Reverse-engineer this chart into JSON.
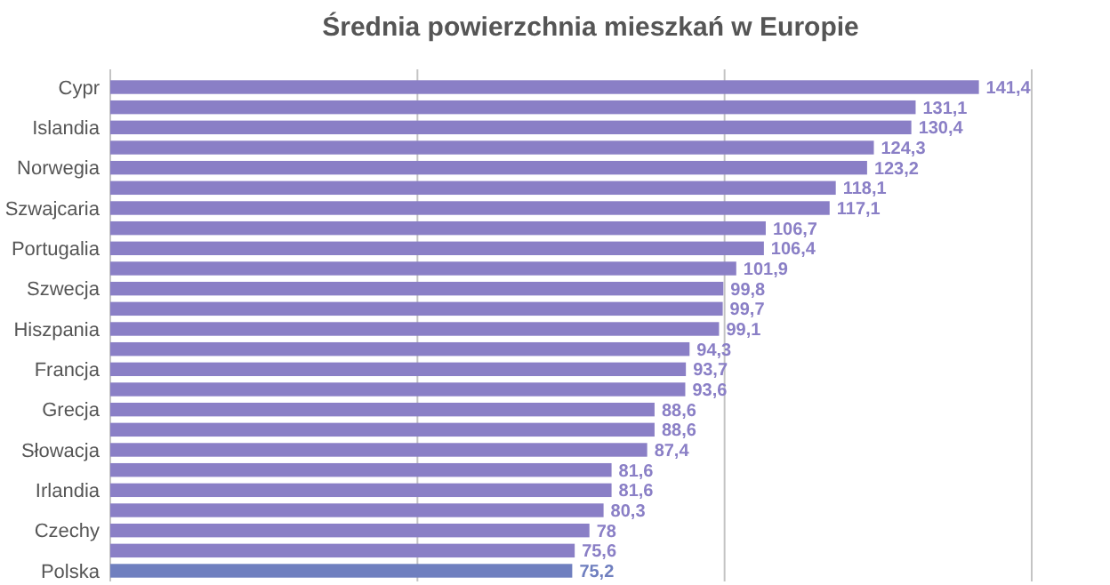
{
  "chart_data": {
    "type": "bar",
    "orientation": "horizontal",
    "title": "Średnia powierzchnia mieszkań w Europie",
    "categories": [
      "Cypr",
      null,
      "Islandia",
      null,
      "Norwegia",
      null,
      "Szwajcaria",
      null,
      "Portugalia",
      null,
      "Szwecja",
      null,
      "Hiszpania",
      null,
      "Francja",
      null,
      "Grecja",
      null,
      "Słowacja",
      null,
      "Irlandia",
      null,
      "Czechy",
      null,
      "Polska"
    ],
    "values": [
      141.4,
      131.1,
      130.4,
      124.3,
      123.2,
      118.1,
      117.1,
      106.7,
      106.4,
      101.9,
      99.8,
      99.7,
      99.1,
      94.3,
      93.7,
      93.6,
      88.6,
      88.6,
      87.4,
      81.6,
      81.6,
      80.3,
      78,
      75.6,
      75.2
    ],
    "value_labels": [
      "141,4",
      "131,1",
      "130,4",
      "124,3",
      "123,2",
      "118,1",
      "117,1",
      "106,7",
      "106,4",
      "101,9",
      "99,8",
      "99,7",
      "99,1",
      "94,3",
      "93,7",
      "93,6",
      "88,6",
      "88,6",
      "87,4",
      "81,6",
      "81,6",
      "80,3",
      "78",
      "75,6",
      "75,2"
    ],
    "colors": [
      "#8a7fc6",
      "#8a7fc6",
      "#8a7fc6",
      "#8a7fc6",
      "#8a7fc6",
      "#8a7fc6",
      "#8a7fc6",
      "#8a7fc6",
      "#8a7fc6",
      "#8a7fc6",
      "#8a7fc6",
      "#8a7fc6",
      "#8a7fc6",
      "#8a7fc6",
      "#8a7fc6",
      "#8a7fc6",
      "#8a7fc6",
      "#8a7fc6",
      "#8a7fc6",
      "#8a7fc6",
      "#8a7fc6",
      "#8a7fc6",
      "#8a7fc6",
      "#8a7fc6",
      "#6f7fbf"
    ],
    "xlim": [
      0,
      150
    ],
    "xticks": [
      {
        "value": 0,
        "label": null
      },
      {
        "value": 50,
        "label": null
      },
      {
        "value": 100,
        "label": null
      },
      {
        "value": 150,
        "label": null
      }
    ],
    "grid": "x",
    "tick_labels": "y"
  }
}
